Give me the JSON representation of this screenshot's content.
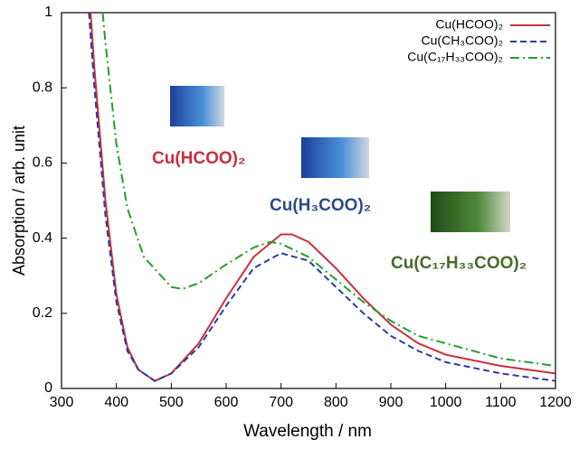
{
  "chart_data": {
    "type": "line",
    "x_label": "Wavelength / nm",
    "y_label": "Absorption  / arb. unit",
    "xlim": [
      300,
      1200
    ],
    "xticks": [
      300,
      400,
      500,
      600,
      700,
      800,
      900,
      1000,
      1100,
      1200
    ],
    "ylim": [
      0,
      1
    ],
    "yticks": [
      0,
      0.2,
      0.4,
      0.6,
      0.8,
      1
    ],
    "series": [
      {
        "name": "Cu(HCOO)₂",
        "color": "#c8303c",
        "dash": "solid",
        "x": [
          353,
          360,
          380,
          400,
          420,
          440,
          470,
          500,
          550,
          600,
          650,
          700,
          720,
          750,
          800,
          850,
          900,
          950,
          1000,
          1100,
          1200
        ],
        "values": [
          1.0,
          0.85,
          0.5,
          0.25,
          0.11,
          0.05,
          0.02,
          0.04,
          0.12,
          0.24,
          0.35,
          0.41,
          0.41,
          0.39,
          0.32,
          0.24,
          0.17,
          0.12,
          0.09,
          0.06,
          0.04
        ]
      },
      {
        "name": "Cu(CH₃COO)₂",
        "color": "#2c3d9c",
        "dash": "dashed",
        "x": [
          350,
          360,
          380,
          400,
          420,
          440,
          470,
          500,
          550,
          600,
          650,
          700,
          750,
          800,
          850,
          900,
          950,
          1000,
          1100,
          1200
        ],
        "values": [
          1.0,
          0.8,
          0.46,
          0.23,
          0.1,
          0.05,
          0.02,
          0.04,
          0.11,
          0.22,
          0.32,
          0.36,
          0.34,
          0.27,
          0.2,
          0.14,
          0.1,
          0.07,
          0.04,
          0.02
        ]
      },
      {
        "name": "Cu(C₁₇H₃₃COO)₂",
        "color": "#22a02a",
        "dash": "dashdot",
        "x": [
          375,
          380,
          400,
          420,
          450,
          500,
          520,
          550,
          600,
          650,
          680,
          700,
          750,
          800,
          850,
          900,
          950,
          1000,
          1100,
          1200
        ],
        "values": [
          1.0,
          0.92,
          0.65,
          0.48,
          0.35,
          0.27,
          0.265,
          0.28,
          0.33,
          0.375,
          0.39,
          0.385,
          0.35,
          0.29,
          0.23,
          0.18,
          0.14,
          0.12,
          0.08,
          0.06
        ]
      }
    ],
    "annotations": [
      {
        "text": "Cu(HCOO)₂",
        "color": "#c8303c"
      },
      {
        "text": "Cu(H₃COO)₂",
        "color": "#2c4a8c"
      },
      {
        "text": "Cu(C₁₇H₃₃COO)₂",
        "color": "#4a6a2a"
      }
    ]
  }
}
